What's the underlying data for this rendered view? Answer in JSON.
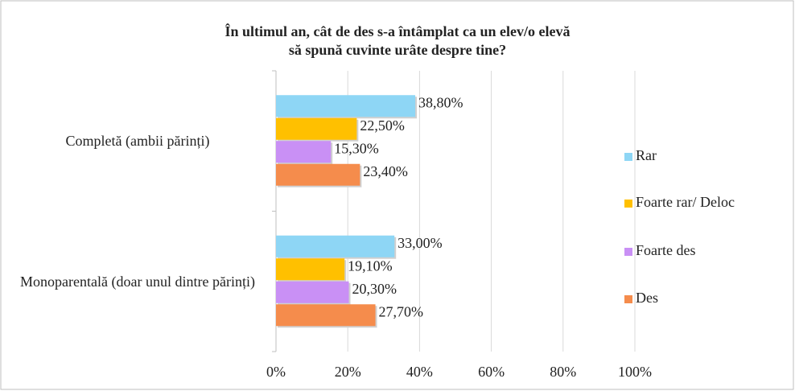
{
  "chart_data": {
    "type": "hbar",
    "title": [
      "În ultimul  an, cât de des s-a întâmplat ca un elev/o elevă",
      "să spună cuvinte urâte despre tine?"
    ],
    "categories": [
      "Completă (ambii părinți)",
      "Monoparentală (doar unul dintre părinți)"
    ],
    "series": [
      {
        "name": "Rar",
        "color": "#8ed6f5",
        "values": [
          38.8,
          33.0
        ],
        "value_labels": [
          "38,80%",
          "33,00%"
        ]
      },
      {
        "name": "Foarte rar/ Deloc",
        "color": "#ffc000",
        "values": [
          22.5,
          19.1
        ],
        "value_labels": [
          "22,50%",
          "19,10%"
        ]
      },
      {
        "name": "Foarte des",
        "color": "#c990f5",
        "values": [
          15.3,
          20.3
        ],
        "value_labels": [
          "15,30%",
          "20,30%"
        ]
      },
      {
        "name": "Des",
        "color": "#f58c4c",
        "values": [
          23.4,
          27.7
        ],
        "value_labels": [
          "23,40%",
          "27,70%"
        ]
      }
    ],
    "xlim": [
      0,
      100
    ],
    "xticks": [
      {
        "value": 0,
        "label": "0%"
      },
      {
        "value": 20,
        "label": "20%"
      },
      {
        "value": 40,
        "label": "40%"
      },
      {
        "value": 60,
        "label": "60%"
      },
      {
        "value": 80,
        "label": "80%"
      },
      {
        "value": 100,
        "label": "100%"
      }
    ],
    "grid": true,
    "legend": "right"
  }
}
